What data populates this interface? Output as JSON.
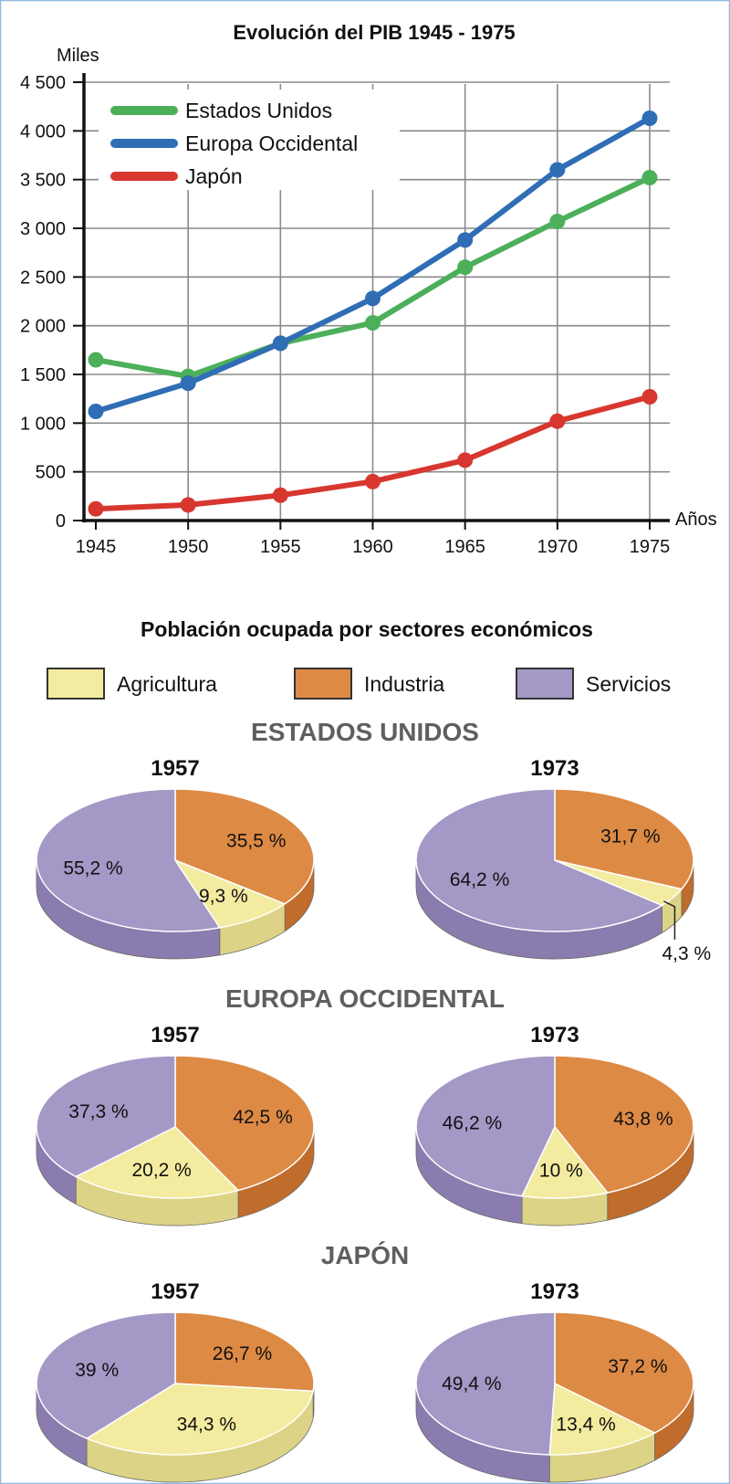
{
  "colors": {
    "us": "#4caf5a",
    "eu": "#2f6db5",
    "jp": "#d7372f",
    "agri": "#f3eba0",
    "agri_side": "#ddd386",
    "ind": "#dd8a45",
    "ind_side": "#c06c2c",
    "serv": "#a498c6",
    "serv_side": "#8a7cae",
    "grid": "#8a8a8a",
    "frame": "#8fb8e0"
  },
  "chart_data": [
    {
      "type": "line",
      "title": "Evolución del PIB 1945 - 1975",
      "ylabel": "Miles",
      "xlabel": "Años",
      "x": [
        1945,
        1950,
        1955,
        1960,
        1965,
        1970,
        1975
      ],
      "x_tick_labels": [
        "1945",
        "1950",
        "1955",
        "1960",
        "1965",
        "1970",
        "1975"
      ],
      "ylim": [
        0,
        4500
      ],
      "y_ticks": [
        0,
        500,
        1000,
        1500,
        2000,
        2500,
        3000,
        3500,
        4000,
        4500
      ],
      "y_tick_labels": [
        "0",
        "500",
        "1 000",
        "1 500",
        "2 000",
        "2 500",
        "3 000",
        "3 500",
        "4 000",
        "4 500"
      ],
      "grid": true,
      "legend": "top-left",
      "series": [
        {
          "key": "us",
          "name": "Estados Unidos",
          "color": "#4caf5a",
          "values": [
            1650,
            1480,
            1820,
            2030,
            2600,
            3070,
            3520
          ]
        },
        {
          "key": "eu",
          "name": "Europa Occidental",
          "color": "#2f6db5",
          "values": [
            1120,
            1410,
            1820,
            2280,
            2880,
            3600,
            4130
          ]
        },
        {
          "key": "jp",
          "name": "Japón",
          "color": "#d7372f",
          "values": [
            120,
            160,
            260,
            400,
            620,
            1020,
            1270
          ]
        }
      ]
    },
    {
      "type": "pie",
      "title": "Población ocupada por sectores económicos",
      "legend": "top",
      "sectors": [
        {
          "key": "agri",
          "name": "Agricultura"
        },
        {
          "key": "ind",
          "name": "Industria"
        },
        {
          "key": "serv",
          "name": "Servicios"
        }
      ],
      "groups": [
        {
          "name": "ESTADOS UNIDOS",
          "pies": [
            {
              "year": "1957",
              "values": {
                "ind": 35.5,
                "agri": 9.3,
                "serv": 55.2
              },
              "labels": {
                "ind": "35,5 %",
                "agri": "9,3 %",
                "serv": "55,2 %"
              }
            },
            {
              "year": "1973",
              "values": {
                "ind": 31.7,
                "agri": 4.3,
                "serv": 64.2
              },
              "labels": {
                "ind": "31,7 %",
                "agri": "4,3 %",
                "serv": "64,2 %"
              }
            }
          ]
        },
        {
          "name": "EUROPA OCCIDENTAL",
          "pies": [
            {
              "year": "1957",
              "values": {
                "ind": 42.5,
                "agri": 20.2,
                "serv": 37.3
              },
              "labels": {
                "ind": "42,5 %",
                "agri": "20,2 %",
                "serv": "37,3 %"
              }
            },
            {
              "year": "1973",
              "values": {
                "ind": 43.8,
                "agri": 10,
                "serv": 46.2
              },
              "labels": {
                "ind": "43,8 %",
                "agri": "10 %",
                "serv": "46,2 %"
              }
            }
          ]
        },
        {
          "name": "JAPÓN",
          "pies": [
            {
              "year": "1957",
              "values": {
                "ind": 26.7,
                "agri": 34.3,
                "serv": 39
              },
              "labels": {
                "ind": "26,7 %",
                "agri": "34,3 %",
                "serv": "39 %"
              }
            },
            {
              "year": "1973",
              "values": {
                "ind": 37.2,
                "agri": 13.4,
                "serv": 49.4
              },
              "labels": {
                "ind": "37,2 %",
                "agri": "13,4 %",
                "serv": "49,4 %"
              }
            }
          ]
        }
      ]
    }
  ]
}
